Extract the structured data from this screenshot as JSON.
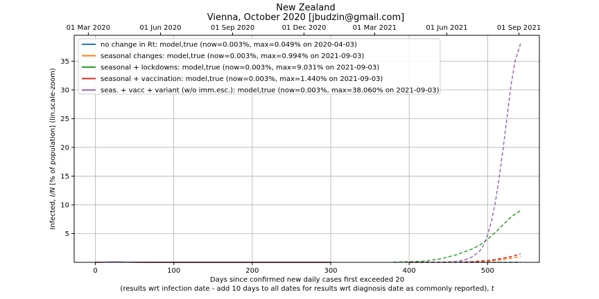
{
  "chart_data": {
    "type": "line",
    "title": "New Zealand",
    "subtitle": "Vienna, October 2020 [jbudzin@gmail.com]",
    "xlabel": "Days since confirmed new daily cases first exceeded 20",
    "xlabel_note_prefix": "(results wrt infection date - add 10 days to all dates for results wrt diagnosis date as commonly reported), ",
    "xlabel_note_var": "t",
    "ylabel_prefix": "Infected, ",
    "ylabel_var": "I/N",
    "ylabel_suffix": " [% of population] (lin.scale-zoom)",
    "xlim": [
      -27,
      566
    ],
    "ylim": [
      0,
      39.5
    ],
    "x_ticks": [
      0,
      100,
      200,
      300,
      400,
      500
    ],
    "y_ticks": [
      5,
      10,
      15,
      20,
      25,
      30,
      35
    ],
    "top_axis": {
      "ticks": [
        {
          "label": "01 Mar 2020",
          "x": -9
        },
        {
          "label": "01 Jun 2020",
          "x": 83
        },
        {
          "label": "01 Sep 2020",
          "x": 175
        },
        {
          "label": "01 Dec 2020",
          "x": 266
        },
        {
          "label": "01 Mar 2021",
          "x": 356
        },
        {
          "label": "01 Jun 2021",
          "x": 448
        },
        {
          "label": "01 Sep 2021",
          "x": 540
        }
      ]
    },
    "grid": true,
    "legend_position": "top-left",
    "series": [
      {
        "name": "no change in Rt: model,true (now=0.003%, max=0.049% on 2020-04-03)",
        "color": "#1f77b4",
        "x": [
          0,
          10,
          20,
          25,
          30,
          40,
          60,
          100,
          200,
          300,
          400,
          500,
          542
        ],
        "y": [
          0.01,
          0.03,
          0.045,
          0.049,
          0.045,
          0.03,
          0.01,
          0.003,
          0.003,
          0.003,
          0.003,
          0.003,
          0.003
        ]
      },
      {
        "name": "seasonal changes: model,true (now=0.003%, max=0.994% on 2021-09-03)",
        "color": "#ff7f0e",
        "x": [
          0,
          25,
          60,
          100,
          200,
          300,
          400,
          440,
          460,
          480,
          500,
          510,
          520,
          530,
          542
        ],
        "y": [
          0.01,
          0.049,
          0.01,
          0.003,
          0.003,
          0.003,
          0.003,
          0.01,
          0.03,
          0.08,
          0.2,
          0.32,
          0.5,
          0.72,
          0.994
        ]
      },
      {
        "name": "seasonal + lockdowns: model,true (now=0.003%, max=9.031% on 2021-09-03)",
        "color": "#2ca02c",
        "x": [
          0,
          25,
          60,
          100,
          200,
          300,
          380,
          420,
          440,
          460,
          480,
          490,
          500,
          510,
          520,
          530,
          542
        ],
        "y": [
          0.01,
          0.049,
          0.01,
          0.003,
          0.003,
          0.003,
          0.01,
          0.2,
          0.6,
          1.3,
          2.3,
          3.0,
          4.0,
          5.2,
          6.6,
          7.9,
          9.031
        ]
      },
      {
        "name": "seasonal + vaccination: model,true (now=0.003%, max=1.440% on 2021-09-03)",
        "color": "#d62728",
        "x": [
          0,
          25,
          60,
          100,
          200,
          300,
          400,
          440,
          460,
          480,
          500,
          510,
          520,
          530,
          542
        ],
        "y": [
          0.01,
          0.049,
          0.01,
          0.003,
          0.003,
          0.003,
          0.003,
          0.01,
          0.04,
          0.12,
          0.3,
          0.48,
          0.72,
          1.0,
          1.44
        ]
      },
      {
        "name": "seas. + vacc + variant (w/o imm.esc.): model,true (now=0.003%, max=38.060% on 2021-09-03)",
        "color": "#9467bd",
        "x": [
          0,
          25,
          60,
          100,
          200,
          300,
          400,
          440,
          460,
          470,
          480,
          490,
          495,
          500,
          505,
          510,
          515,
          520,
          525,
          530,
          535,
          542
        ],
        "y": [
          0.01,
          0.049,
          0.01,
          0.003,
          0.003,
          0.003,
          0.003,
          0.02,
          0.15,
          0.4,
          0.9,
          2.0,
          3.0,
          4.8,
          7.2,
          10.5,
          15.0,
          20.0,
          25.5,
          31.0,
          35.0,
          38.06
        ]
      }
    ]
  }
}
